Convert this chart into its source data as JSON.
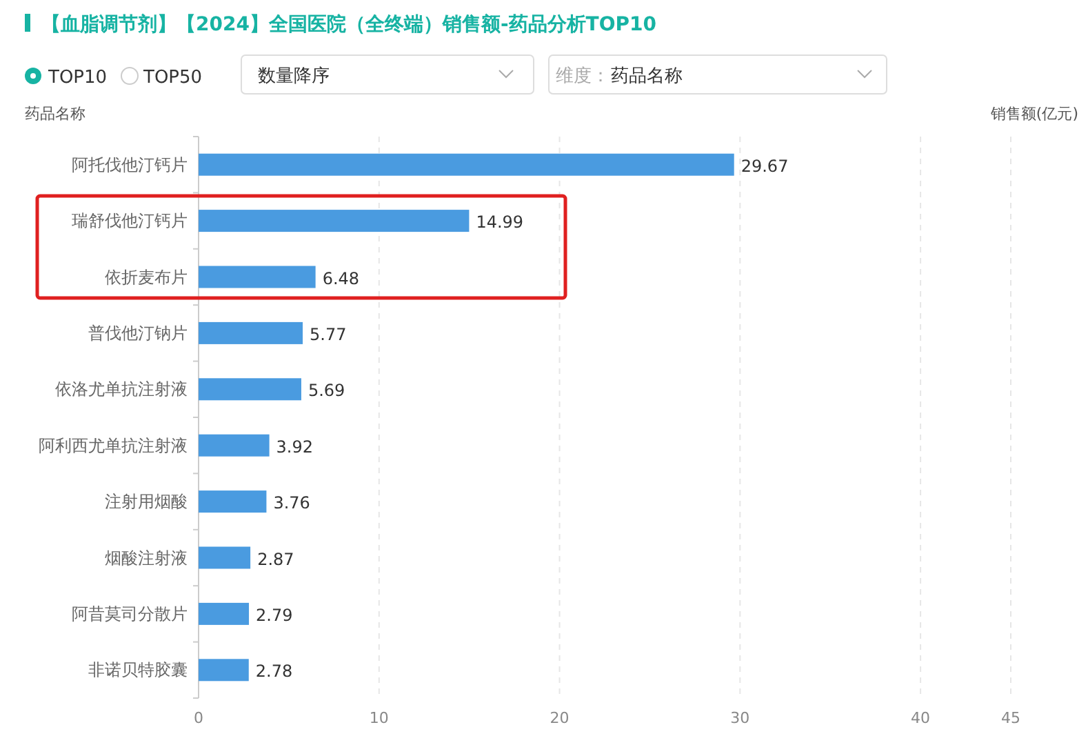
{
  "chart_data": {
    "type": "bar",
    "orientation": "horizontal",
    "title": "【血脂调节剂】【2024】全国医院（全终端）销售额-药品分析TOP10",
    "ylabel": "药品名称",
    "xlabel": "销售额(亿元)",
    "categories": [
      "阿托伐他汀钙片",
      "瑞舒伐他汀钙片",
      "依折麦布片",
      "普伐他汀钠片",
      "依洛尤单抗注射液",
      "阿利西尤单抗注射液",
      "注射用烟酸",
      "烟酸注射液",
      "阿昔莫司分散片",
      "非诺贝特胶囊"
    ],
    "values": [
      29.67,
      14.99,
      6.48,
      5.77,
      5.69,
      3.92,
      3.76,
      2.87,
      2.79,
      2.78
    ],
    "color": "#4a9be0",
    "xlim": [
      0,
      45
    ],
    "xticks": [
      0,
      10,
      20,
      30,
      40,
      45
    ],
    "grid": "x",
    "data_labels": true,
    "annotations": [
      "TOP10",
      "TOP50",
      "数量降序",
      "维度：",
      "药品名称"
    ]
  }
}
